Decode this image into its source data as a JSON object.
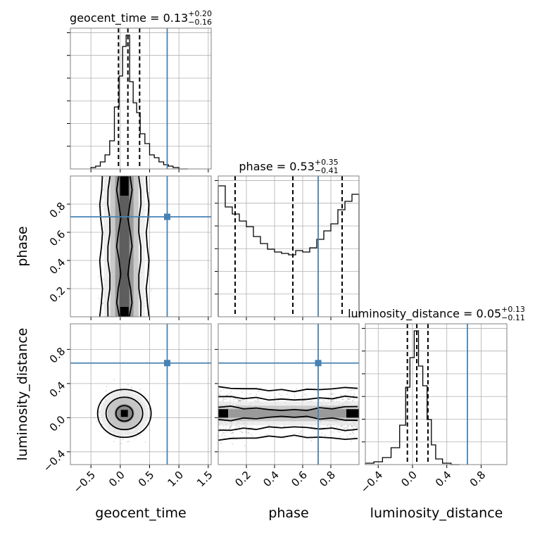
{
  "chart_data": {
    "type": "corner",
    "parameters": [
      "geocent_time",
      "phase",
      "luminosity_distance"
    ],
    "truths": {
      "geocent_time": 0.8,
      "phase": 0.71,
      "luminosity_distance": 0.64
    },
    "colors": {
      "truth": "#4682b4",
      "hist": "#000000",
      "grid": "#b0b0b0",
      "points": "#888888"
    },
    "grid": true,
    "titles": {
      "geocent_time": {
        "name": "geocent_time",
        "median": "0.13",
        "plus": "+0.20",
        "minus": "−0.16"
      },
      "phase": {
        "name": "phase",
        "median": "0.53",
        "plus": "+0.35",
        "minus": "−0.41"
      },
      "luminosity_distance": {
        "name": "luminosity_distance",
        "median": "0.05",
        "plus": "+0.13",
        "minus": "−0.11"
      }
    },
    "axes": {
      "geocent_time": {
        "range": [
          -0.85,
          1.55
        ],
        "ticks": [
          -0.5,
          0.0,
          0.5,
          1.0,
          1.5
        ],
        "ticklabels": [
          "−0.5",
          "0.0",
          "0.5",
          "1.0",
          "1.5"
        ],
        "label": "geocent_time"
      },
      "phase": {
        "range": [
          0.0,
          1.0
        ],
        "ticks": [
          0.2,
          0.4,
          0.6,
          0.8
        ],
        "ticklabels": [
          "0.2",
          "0.4",
          "0.6",
          "0.8"
        ],
        "label": "phase"
      },
      "luminosity_distance": {
        "range": [
          -0.55,
          1.1
        ],
        "ticks": [
          -0.4,
          0.0,
          0.4,
          0.8
        ],
        "ticklabels": [
          "−0.4",
          "0.0",
          "0.4",
          "0.8"
        ],
        "label": "luminosity_distance"
      }
    },
    "histograms": {
      "geocent_time": {
        "edges": [
          -0.5,
          -0.42,
          -0.34,
          -0.26,
          -0.18,
          -0.1,
          -0.02,
          0.04,
          0.1,
          0.16,
          0.22,
          0.28,
          0.34,
          0.42,
          0.5,
          0.58,
          0.66,
          0.74,
          0.82,
          0.9,
          1.0,
          1.15
        ],
        "counts": [
          0.01,
          0.02,
          0.05,
          0.1,
          0.2,
          0.44,
          0.66,
          0.87,
          0.95,
          0.62,
          0.47,
          0.4,
          0.25,
          0.18,
          0.1,
          0.08,
          0.05,
          0.03,
          0.02,
          0.01,
          0.0
        ],
        "quantiles": [
          -0.03,
          0.13,
          0.33
        ]
      },
      "phase": {
        "edges": [
          0,
          0.05,
          0.1,
          0.15,
          0.2,
          0.25,
          0.3,
          0.35,
          0.4,
          0.45,
          0.5,
          0.55,
          0.6,
          0.65,
          0.7,
          0.75,
          0.8,
          0.85,
          0.9,
          0.95,
          1.0
        ],
        "counts": [
          0.93,
          0.78,
          0.73,
          0.68,
          0.64,
          0.57,
          0.52,
          0.48,
          0.46,
          0.45,
          0.44,
          0.47,
          0.46,
          0.49,
          0.55,
          0.61,
          0.66,
          0.76,
          0.82,
          0.87
        ],
        "quantiles": [
          0.12,
          0.53,
          0.88
        ]
      },
      "luminosity_distance": {
        "edges": [
          -0.55,
          -0.45,
          -0.35,
          -0.25,
          -0.15,
          -0.08,
          -0.03,
          0.02,
          0.07,
          0.12,
          0.17,
          0.22,
          0.27,
          0.35,
          0.45,
          0.55
        ],
        "counts": [
          0.01,
          0.02,
          0.05,
          0.12,
          0.28,
          0.55,
          0.76,
          0.95,
          0.7,
          0.56,
          0.32,
          0.14,
          0.04,
          0.01,
          0.0
        ],
        "quantiles": [
          -0.06,
          0.05,
          0.18
        ]
      }
    },
    "joint": {
      "phase_vs_geocent_time": {
        "center_x": 0.07,
        "spread_x": 0.15,
        "y_concentrated_at_edges": true
      },
      "luminosity_distance_vs_geocent_time": {
        "center_x": 0.07,
        "center_y": 0.05,
        "spread_x": 0.15,
        "spread_y": 0.11
      },
      "luminosity_distance_vs_phase": {
        "center_y": 0.05,
        "spread_y": 0.11,
        "x_concentrated_at_edges": true
      }
    }
  }
}
